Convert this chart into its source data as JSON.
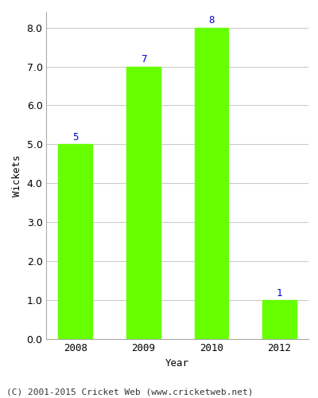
{
  "years": [
    "2008",
    "2009",
    "2010",
    "2012"
  ],
  "values": [
    5,
    7,
    8,
    1
  ],
  "bar_color": "#66ff00",
  "bar_edge_color": "#66ff00",
  "label_color": "#0000cc",
  "ylabel": "Wickets",
  "xlabel": "Year",
  "ylim_max": 8.4,
  "yticks": [
    0.0,
    1.0,
    2.0,
    3.0,
    4.0,
    5.0,
    6.0,
    7.0,
    8.0
  ],
  "label_fontsize": 9,
  "axis_label_fontsize": 9,
  "tick_fontsize": 9,
  "footer": "(C) 2001-2015 Cricket Web (www.cricketweb.net)",
  "footer_fontsize": 8,
  "background_color": "#ffffff",
  "grid_color": "#cccccc",
  "bar_width": 0.5
}
